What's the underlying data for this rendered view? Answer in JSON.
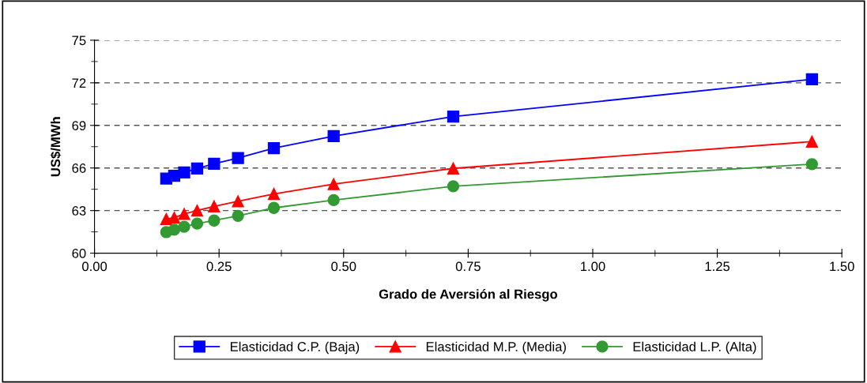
{
  "chart_data": {
    "type": "line",
    "xlabel": "Grado de Aversión al Riesgo",
    "ylabel": "US$/MWh",
    "x": [
      0.144,
      0.16,
      0.18,
      0.206,
      0.24,
      0.288,
      0.36,
      0.48,
      0.72,
      1.44
    ],
    "series": [
      {
        "name": "Elasticidad C.P. (Baja)",
        "color": "#0000ff",
        "marker": "square",
        "values": [
          65.26,
          65.45,
          65.69,
          65.96,
          66.3,
          66.7,
          67.4,
          68.25,
          69.62,
          72.25
        ]
      },
      {
        "name": "Elasticidad M.P. (Media)",
        "color": "#ff0000",
        "marker": "triangle",
        "values": [
          62.4,
          62.5,
          62.76,
          63.0,
          63.3,
          63.65,
          64.17,
          64.86,
          65.97,
          67.86
        ]
      },
      {
        "name": "Elasticidad L.P. (Alta)",
        "color": "#339933",
        "marker": "circle",
        "values": [
          61.48,
          61.65,
          61.86,
          62.08,
          62.3,
          62.63,
          63.19,
          63.74,
          64.71,
          66.27
        ]
      }
    ],
    "xlim": [
      0,
      1.5
    ],
    "xticks": [
      {
        "value": 0,
        "label": "0.00"
      },
      {
        "value": 0.25,
        "label": "0.25"
      },
      {
        "value": 0.5,
        "label": "0.50"
      },
      {
        "value": 0.75,
        "label": "0.75"
      },
      {
        "value": 1,
        "label": "1.00"
      },
      {
        "value": 1.25,
        "label": "1.25"
      },
      {
        "value": 1.5,
        "label": "1.50"
      }
    ],
    "ylim": [
      60,
      75
    ],
    "yticks": [
      60,
      63,
      66,
      69,
      72,
      75
    ],
    "grid": "y",
    "legend": "bottom",
    "line_style": "solid"
  }
}
